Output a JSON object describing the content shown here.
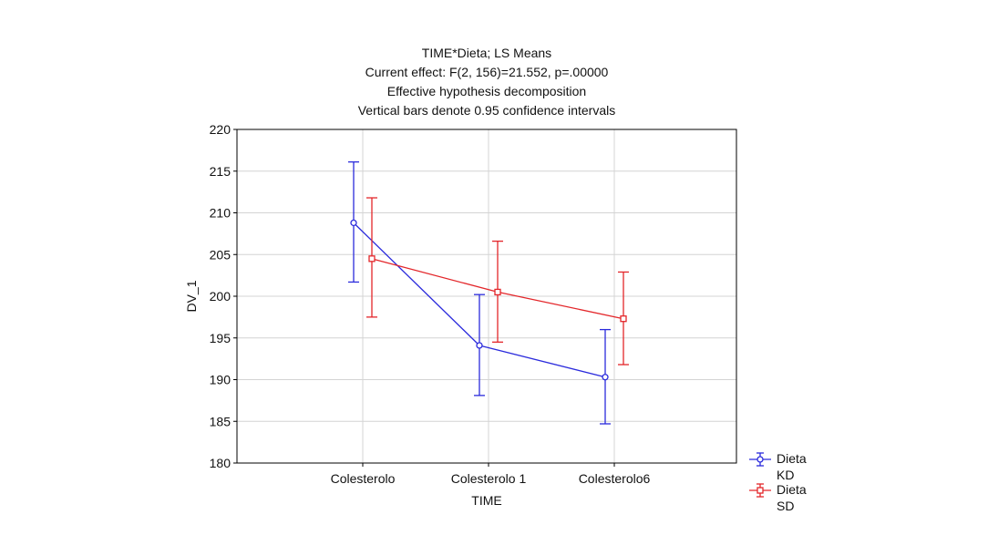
{
  "chart_data": {
    "type": "line",
    "title_lines": [
      "TIME*Dieta; LS Means",
      "Current effect: F(2, 156)=21.552, p=.00000",
      "Effective hypothesis decomposition",
      "Vertical bars denote 0.95 confidence intervals"
    ],
    "xlabel": "TIME",
    "ylabel": "DV_1",
    "categories": [
      "Colesterolo",
      "Colesterolo 1",
      "Colesterolo6"
    ],
    "ylim": [
      180,
      220
    ],
    "yticks": [
      180,
      185,
      190,
      195,
      200,
      205,
      210,
      215,
      220
    ],
    "grid": true,
    "legend_position": "bottom-right outside",
    "series": [
      {
        "legend_line1": "Dieta",
        "legend_line2": "KD",
        "color": "#2b2bdc",
        "marker": "circle",
        "values": [
          208.8,
          194.1,
          190.3
        ],
        "ci_low": [
          201.7,
          188.1,
          184.7
        ],
        "ci_high": [
          216.1,
          200.2,
          196.0
        ]
      },
      {
        "legend_line1": "Dieta",
        "legend_line2": "SD",
        "color": "#e3262a",
        "marker": "square",
        "values": [
          204.5,
          200.5,
          197.3
        ],
        "ci_low": [
          197.5,
          194.5,
          191.8
        ],
        "ci_high": [
          211.8,
          206.6,
          202.9
        ]
      }
    ]
  }
}
